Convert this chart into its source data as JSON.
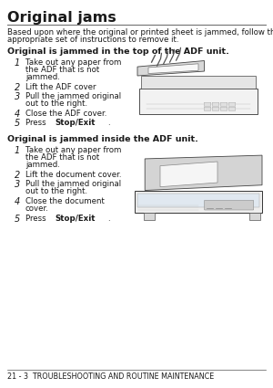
{
  "title": "Original jams",
  "bg_color": "#ffffff",
  "text_color": "#1a1a1a",
  "title_fontsize": 11.5,
  "intro_text_line1": "Based upon where the original or printed sheet is jammed, follow the",
  "intro_text_line2": "appropriate set of instructions to remove it.",
  "section1_header": "Original is jammed in the top of the ADF unit.",
  "section1_steps": [
    "Take out any paper from\nthe ADF that is not\njammed.",
    "Lift the ADF cover",
    "Pull the jammed original\nout to the right.",
    "Close the ADF cover.",
    "Press {bold}Stop/Exit{/bold}."
  ],
  "section2_header": "Original is jammed inside the ADF unit.",
  "section2_steps": [
    "Take out any paper from\nthe ADF that is not\njammed.",
    "Lift the document cover.",
    "Pull the jammed original\nout to the right.",
    "Close the document\ncover.",
    "Press {bold}Stop/Exit{/bold}."
  ],
  "footer": "21 - 3  TROUBLESHOOTING AND ROUTINE MAINTENANCE",
  "line_color": "#666666",
  "footer_line_color": "#555555"
}
